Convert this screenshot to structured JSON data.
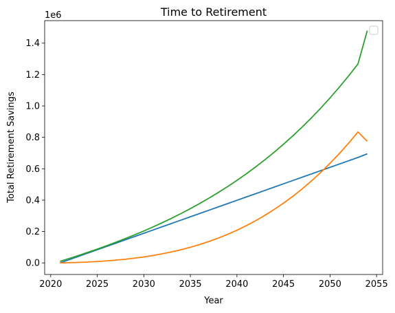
{
  "chart_data": {
    "type": "line",
    "title": "Time to Retirement",
    "xlabel": "Year",
    "ylabel": "Total Retirement Savings",
    "y_offset_label": "1e6",
    "xlim": [
      2019.35,
      2055.65
    ],
    "ylim": [
      -0.0735,
      1.5435
    ],
    "xticks": [
      2020,
      2025,
      2030,
      2035,
      2040,
      2045,
      2050,
      2055
    ],
    "yticks": [
      0.0,
      0.2,
      0.4,
      0.6,
      0.8,
      1.0,
      1.2,
      1.4
    ],
    "ytick_labels": [
      "0.0",
      "0.2",
      "0.4",
      "0.6",
      "0.8",
      "1.0",
      "1.2",
      "1.4"
    ],
    "grid": false,
    "legend": {
      "placement": "top-right",
      "entries": []
    },
    "x": [
      2021,
      2022,
      2023,
      2024,
      2025,
      2026,
      2027,
      2028,
      2029,
      2030,
      2031,
      2032,
      2033,
      2034,
      2035,
      2036,
      2037,
      2038,
      2039,
      2040,
      2041,
      2042,
      2043,
      2044,
      2045,
      2046,
      2047,
      2048,
      2049,
      2050,
      2051,
      2052,
      2053,
      2054
    ],
    "series": [
      {
        "color": "#1f77b4",
        "values": [
          0.0,
          0.021,
          0.042,
          0.063,
          0.084,
          0.105,
          0.126,
          0.147,
          0.168,
          0.189,
          0.21,
          0.231,
          0.252,
          0.273,
          0.294,
          0.315,
          0.336,
          0.357,
          0.378,
          0.399,
          0.42,
          0.441,
          0.462,
          0.483,
          0.504,
          0.525,
          0.546,
          0.567,
          0.588,
          0.609,
          0.63,
          0.651,
          0.672,
          0.695
        ]
      },
      {
        "color": "#ff7f0e",
        "values": [
          0.0,
          0.0014,
          0.0033,
          0.0059,
          0.0091,
          0.0131,
          0.0179,
          0.0236,
          0.0304,
          0.0384,
          0.0477,
          0.0583,
          0.0705,
          0.0843,
          0.0999,
          0.1173,
          0.1368,
          0.1584,
          0.1822,
          0.2085,
          0.2373,
          0.2688,
          0.3031,
          0.3404,
          0.3807,
          0.4243,
          0.4714,
          0.522,
          0.5763,
          0.6345,
          0.6968,
          0.7633,
          0.8341,
          0.775
        ]
      },
      {
        "color": "#2ca02c",
        "values": [
          0.01,
          0.0286,
          0.0479,
          0.0678,
          0.0884,
          0.1097,
          0.1318,
          0.1548,
          0.1787,
          0.2036,
          0.2296,
          0.2568,
          0.2852,
          0.3149,
          0.346,
          0.3786,
          0.4128,
          0.4487,
          0.4864,
          0.526,
          0.5675,
          0.6112,
          0.6571,
          0.7053,
          0.756,
          0.8093,
          0.8653,
          0.9242,
          0.9861,
          1.0512,
          1.1197,
          1.1917,
          1.2674,
          1.48
        ]
      }
    ]
  }
}
